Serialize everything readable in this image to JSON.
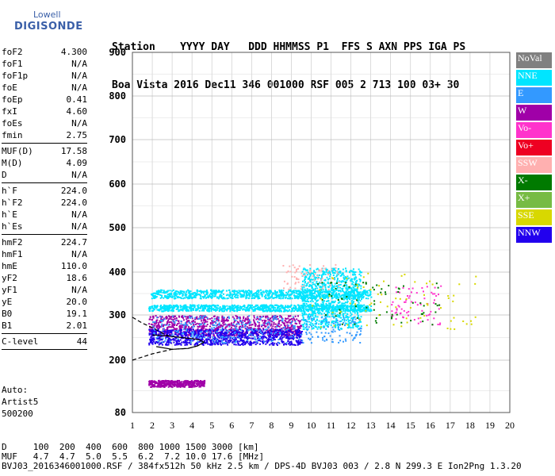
{
  "logo": {
    "line1": "Lowell",
    "line2": "DIGISONDE"
  },
  "header": {
    "labels": [
      "Station",
      "YYYY",
      "DAY",
      "DDD",
      "HHMMSS",
      "P1",
      "FFS",
      "S",
      "AXN",
      "PPS",
      "IGA",
      "PS"
    ],
    "values": [
      "Boa Vista",
      "2016",
      "Dec11",
      "346",
      "001000",
      "RSF",
      "005",
      "2",
      "713",
      "100",
      "03+",
      "30"
    ]
  },
  "params": {
    "group1": [
      {
        "k": "foF2",
        "v": "4.300"
      },
      {
        "k": "foF1",
        "v": "N/A"
      },
      {
        "k": "foF1p",
        "v": "N/A"
      },
      {
        "k": "foE",
        "v": "N/A"
      },
      {
        "k": "foEp",
        "v": "0.41"
      },
      {
        "k": "fxI",
        "v": "4.60"
      },
      {
        "k": "foEs",
        "v": "N/A"
      },
      {
        "k": "fmin",
        "v": "2.75"
      }
    ],
    "group2": [
      {
        "k": "MUF(D)",
        "v": "17.58"
      },
      {
        "k": "M(D)",
        "v": "4.09"
      },
      {
        "k": "D",
        "v": "N/A"
      }
    ],
    "group3": [
      {
        "k": "h`F",
        "v": "224.0"
      },
      {
        "k": "h`F2",
        "v": "224.0"
      },
      {
        "k": "h`E",
        "v": "N/A"
      },
      {
        "k": "h`Es",
        "v": "N/A"
      }
    ],
    "group4": [
      {
        "k": "hmF2",
        "v": "224.7"
      },
      {
        "k": "hmF1",
        "v": "N/A"
      },
      {
        "k": "hmE",
        "v": "110.0"
      },
      {
        "k": "yF2",
        "v": "18.6"
      },
      {
        "k": "yF1",
        "v": "N/A"
      },
      {
        "k": "yE",
        "v": "20.0"
      },
      {
        "k": "B0",
        "v": "19.1"
      },
      {
        "k": "B1",
        "v": "2.01"
      }
    ],
    "group5": [
      {
        "k": "C-level",
        "v": "44"
      }
    ]
  },
  "auto": {
    "line1": "Auto:",
    "line2": "Artist5",
    "line3": "500200"
  },
  "legend": [
    {
      "label": "NoVal",
      "color": "#808080"
    },
    {
      "label": "NNE",
      "color": "#00e5ff"
    },
    {
      "label": "E",
      "color": "#3399ff"
    },
    {
      "label": "W",
      "color": "#a000a8"
    },
    {
      "label": "Vo-",
      "color": "#ff33cc"
    },
    {
      "label": "Vo+",
      "color": "#ee0022"
    },
    {
      "label": "SSW",
      "color": "#ffb0b0"
    },
    {
      "label": "X-",
      "color": "#007a00"
    },
    {
      "label": "X+",
      "color": "#77bb44"
    },
    {
      "label": "SSE",
      "color": "#d8d800"
    },
    {
      "label": "NNW",
      "color": "#2200ee"
    }
  ],
  "footer": {
    "line1": "D     100  200  400  600  800 1000 1500 3000 [km]",
    "line2": "MUF   4.7  4.7  5.0  5.5  6.2  7.2 10.0 17.6 [MHz]",
    "line3": "BVJ03_2016346001000.RSF / 384fx512h 50 kHz 2.5 km / DPS-4D BVJ03 003 / 2.8 N 299.3 E Ion2Png 1.3.20"
  },
  "chart_data": {
    "type": "scatter",
    "title": "",
    "xlabel": "",
    "ylabel": "",
    "xlim": [
      1,
      20
    ],
    "ylim": [
      80,
      900
    ],
    "x_ticks": [
      1,
      2,
      3,
      4,
      5,
      6,
      7,
      8,
      9,
      10,
      11,
      12,
      13,
      14,
      15,
      16,
      17,
      18,
      19,
      20
    ],
    "y_ticks": [
      80,
      200,
      300,
      400,
      500,
      600,
      700,
      800,
      900
    ],
    "grid": true,
    "legend_placement": "right",
    "echo_clusters": [
      {
        "series": "NNE",
        "x_range": [
          1.9,
          13
        ],
        "y_range": [
          340,
          360
        ],
        "density": "high"
      },
      {
        "series": "NNE",
        "x_range": [
          1.8,
          13
        ],
        "y_range": [
          310,
          325
        ],
        "density": "high"
      },
      {
        "series": "NNE",
        "x_range": [
          9.5,
          12.5
        ],
        "y_range": [
          270,
          410
        ],
        "density": "high"
      },
      {
        "series": "W",
        "x_range": [
          1.8,
          9.5
        ],
        "y_range": [
          255,
          300
        ],
        "density": "high"
      },
      {
        "series": "W",
        "x_range": [
          1.8,
          4.6
        ],
        "y_range": [
          140,
          155
        ],
        "density": "medium"
      },
      {
        "series": "NNW",
        "x_range": [
          1.8,
          9.5
        ],
        "y_range": [
          235,
          270
        ],
        "density": "high"
      },
      {
        "series": "E",
        "x_range": [
          2,
          12.5
        ],
        "y_range": [
          240,
          300
        ],
        "density": "medium"
      },
      {
        "series": "SSW",
        "x_range": [
          8.5,
          11.5
        ],
        "y_range": [
          360,
          420
        ],
        "density": "low"
      },
      {
        "series": "Vo-",
        "x_range": [
          14,
          16.5
        ],
        "y_range": [
          280,
          370
        ],
        "density": "low"
      },
      {
        "series": "X-",
        "x_range": [
          10,
          16.5
        ],
        "y_range": [
          280,
          380
        ],
        "density": "low"
      },
      {
        "series": "SSE",
        "x_range": [
          10,
          18.5
        ],
        "y_range": [
          270,
          400
        ],
        "density": "low"
      }
    ],
    "profile_traces": [
      {
        "style": "solid",
        "points": [
          [
            2.2,
            230
          ],
          [
            3,
            224
          ],
          [
            3.8,
            226
          ],
          [
            4.3,
            232
          ],
          [
            4.6,
            240
          ],
          [
            4.3,
            246
          ],
          [
            3.5,
            250
          ],
          [
            2.6,
            254
          ],
          [
            2,
            256
          ]
        ]
      },
      {
        "style": "dashed",
        "points": [
          [
            1,
            200
          ],
          [
            2,
            214
          ],
          [
            3,
            224
          ],
          [
            3.8,
            226
          ],
          [
            4.3,
            232
          ]
        ]
      },
      {
        "style": "dashed",
        "points": [
          [
            1,
            295
          ],
          [
            1.5,
            282
          ],
          [
            2,
            272
          ],
          [
            2.5,
            260
          ],
          [
            3,
            250
          ]
        ]
      }
    ]
  }
}
